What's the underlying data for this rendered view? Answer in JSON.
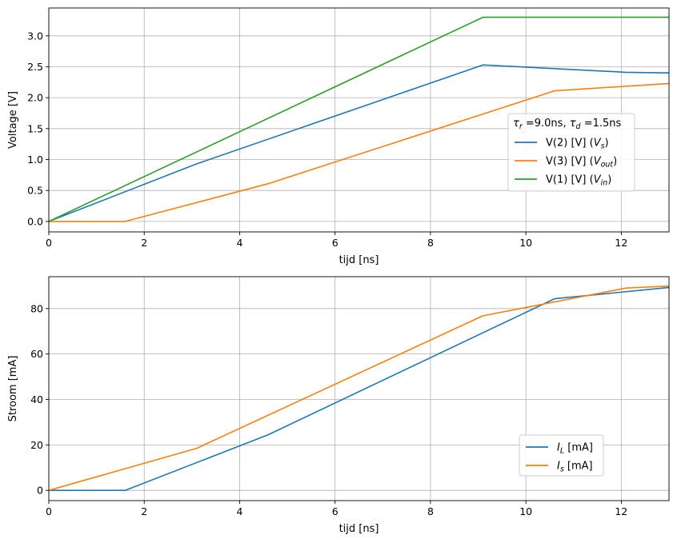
{
  "chart_data": [
    {
      "type": "line",
      "xlabel": "tijd [ns]",
      "ylabel": "Voltage [V]",
      "xlim": [
        0,
        13
      ],
      "ylim": [
        -0.17,
        3.45
      ],
      "xticks": [
        0,
        2,
        4,
        6,
        8,
        10,
        12
      ],
      "yticks": [
        0.0,
        0.5,
        1.0,
        1.5,
        2.0,
        2.5,
        3.0
      ],
      "grid": true,
      "legend_title": "τr =9.0ns, τd =1.5ns",
      "legend_position": "center-right",
      "series": [
        {
          "name": "V(2) [V]  (Vs)",
          "color": "#1f77b4",
          "x": [
            0,
            3.1,
            9.1,
            12.1,
            13
          ],
          "y": [
            0,
            0.93,
            2.53,
            2.41,
            2.4
          ]
        },
        {
          "name": "V(3) [V]  (Vout)",
          "color": "#ff7f0e",
          "x": [
            0,
            1.6,
            4.6,
            10.6,
            13
          ],
          "y": [
            0,
            0,
            0.61,
            2.11,
            2.23
          ]
        },
        {
          "name": "V(1) [V]  (Vin)",
          "color": "#2ca02c",
          "x": [
            0,
            9.1,
            13
          ],
          "y": [
            0,
            3.3,
            3.3
          ]
        }
      ]
    },
    {
      "type": "line",
      "xlabel": "tijd [ns]",
      "ylabel": "Stroom [mA]",
      "xlim": [
        0,
        13
      ],
      "ylim": [
        -4.5,
        94
      ],
      "xticks": [
        0,
        2,
        4,
        6,
        8,
        10,
        12
      ],
      "yticks": [
        0,
        20,
        40,
        60,
        80
      ],
      "grid": true,
      "legend_position": "lower-right",
      "series": [
        {
          "name": "IL  [mA]",
          "color": "#1f77b4",
          "x": [
            0,
            1.6,
            4.6,
            10.6,
            13
          ],
          "y": [
            0,
            0,
            24.5,
            84.3,
            89.3
          ]
        },
        {
          "name": "Is [mA]",
          "color": "#ff7f0e",
          "x": [
            0,
            3.1,
            9.1,
            12.1,
            13
          ],
          "y": [
            0,
            18.5,
            76.8,
            89.0,
            89.9
          ]
        }
      ]
    }
  ]
}
